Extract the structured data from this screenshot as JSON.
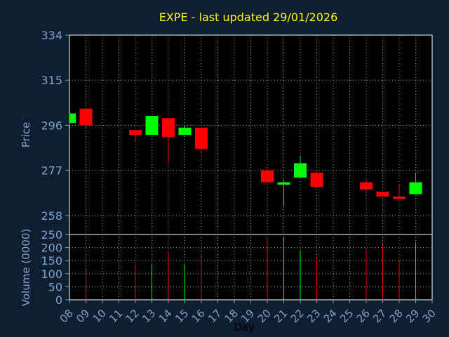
{
  "chart_data": {
    "type": "candlestick",
    "title": "EXPE - last updated 29/01/2026",
    "xlabel": "Day",
    "price_ylabel": "Price",
    "volume_ylabel": "Volume (0000)",
    "price_ticks": [
      258,
      277,
      296,
      315,
      334
    ],
    "price_ylim": [
      250,
      334
    ],
    "volume_ticks": [
      0,
      50,
      100,
      150,
      200,
      250
    ],
    "volume_ylim": [
      0,
      250
    ],
    "x_ticks": [
      "08",
      "09",
      "10",
      "11",
      "12",
      "13",
      "14",
      "15",
      "16",
      "17",
      "18",
      "19",
      "20",
      "21",
      "22",
      "23",
      "24",
      "25",
      "26",
      "27",
      "28",
      "29",
      "30"
    ],
    "grid": true,
    "colors": {
      "background": "#0f1e30",
      "panel": "#000000",
      "title": "#ffff00",
      "axis_text": "#7fa3c8",
      "up": "#00ff00",
      "down": "#ff0000",
      "grid": "#a0a0a0"
    },
    "candles": [
      {
        "day": "08",
        "open": 297,
        "high": 301,
        "low": 296,
        "close": 301
      },
      {
        "day": "09",
        "open": 303,
        "high": 303,
        "low": 295,
        "close": 296
      },
      {
        "day": "12",
        "open": 294,
        "high": 294,
        "low": 289,
        "close": 292
      },
      {
        "day": "13",
        "open": 292,
        "high": 300,
        "low": 292,
        "close": 300
      },
      {
        "day": "14",
        "open": 299,
        "high": 299,
        "low": 280,
        "close": 291
      },
      {
        "day": "15",
        "open": 292,
        "high": 296,
        "low": 292,
        "close": 295
      },
      {
        "day": "16",
        "open": 295,
        "high": 295,
        "low": 284,
        "close": 286
      },
      {
        "day": "20",
        "open": 277,
        "high": 278,
        "low": 272,
        "close": 272
      },
      {
        "day": "21",
        "open": 271,
        "high": 273,
        "low": 262,
        "close": 272
      },
      {
        "day": "22",
        "open": 274,
        "high": 283,
        "low": 274,
        "close": 280
      },
      {
        "day": "23",
        "open": 276,
        "high": 277,
        "low": 270,
        "close": 270
      },
      {
        "day": "26",
        "open": 272,
        "high": 273,
        "low": 268,
        "close": 269
      },
      {
        "day": "27",
        "open": 268,
        "high": 268,
        "low": 266,
        "close": 266
      },
      {
        "day": "28",
        "open": 266,
        "high": 271,
        "low": 265,
        "close": 265
      },
      {
        "day": "29",
        "open": 267,
        "high": 276,
        "low": 267,
        "close": 272
      }
    ],
    "volume": [
      {
        "day": "09",
        "value": 120,
        "direction": "down"
      },
      {
        "day": "12",
        "value": 135,
        "direction": "down"
      },
      {
        "day": "13",
        "value": 135,
        "direction": "up"
      },
      {
        "day": "14",
        "value": 185,
        "direction": "down"
      },
      {
        "day": "15",
        "value": 135,
        "direction": "up"
      },
      {
        "day": "16",
        "value": 170,
        "direction": "down"
      },
      {
        "day": "20",
        "value": 235,
        "direction": "down"
      },
      {
        "day": "21",
        "value": 240,
        "direction": "up"
      },
      {
        "day": "22",
        "value": 190,
        "direction": "up"
      },
      {
        "day": "23",
        "value": 160,
        "direction": "down"
      },
      {
        "day": "26",
        "value": 190,
        "direction": "down"
      },
      {
        "day": "27",
        "value": 215,
        "direction": "down"
      },
      {
        "day": "28",
        "value": 150,
        "direction": "down"
      },
      {
        "day": "29",
        "value": 220,
        "direction": "up"
      }
    ]
  }
}
